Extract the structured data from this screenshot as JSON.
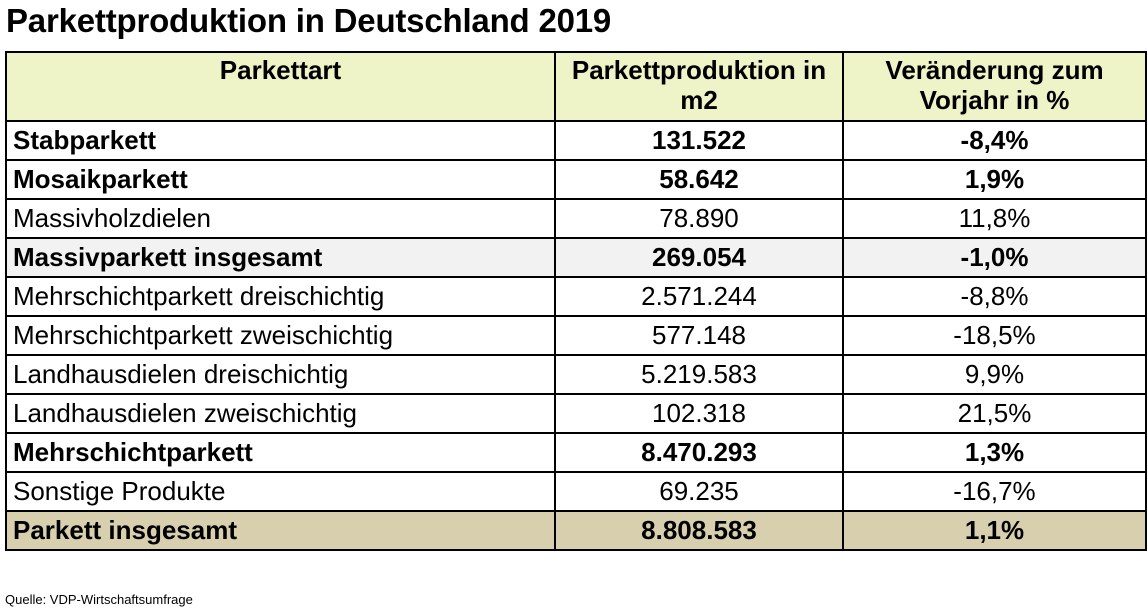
{
  "title": "Parkettproduktion in Deutschland 2019",
  "header": {
    "col1": "Parkettart",
    "col2_line1": "Parkettproduktion in",
    "col2_line2": "m2",
    "col3_line1": "Veränderung zum",
    "col3_line2": "Vorjahr in %"
  },
  "rows": [
    {
      "name": "Stabparkett",
      "value": "131.522",
      "change": "-8,4%"
    },
    {
      "name": "Mosaikparkett",
      "value": "58.642",
      "change": "1,9%"
    },
    {
      "name": "Massivholzdielen",
      "value": "78.890",
      "change": "11,8%"
    },
    {
      "name": "Massivparkett insgesamt",
      "value": "269.054",
      "change": "-1,0%"
    },
    {
      "name": "Mehrschichtparkett dreischichtig",
      "value": "2.571.244",
      "change": "-8,8%"
    },
    {
      "name": "Mehrschichtparkett zweischichtig",
      "value": "577.148",
      "change": "-18,5%"
    },
    {
      "name": "Landhausdielen dreischichtig",
      "value": "5.219.583",
      "change": "9,9%"
    },
    {
      "name": "Landhausdielen zweischichtig",
      "value": "102.318",
      "change": "21,5%"
    },
    {
      "name": "Mehrschichtparkett",
      "value": "8.470.293",
      "change": "1,3%"
    },
    {
      "name": "Sonstige Produkte",
      "value": "69.235",
      "change": "-16,7%"
    },
    {
      "name": "Parkett insgesamt",
      "value": "8.808.583",
      "change": "1,1%"
    }
  ],
  "source": "Quelle: VDP-Wirtschaftsumfrage",
  "colors": {
    "header_bg": "#eef4c8",
    "subtotal_bg": "#f2f2f2",
    "total_bg": "#d7cfae"
  },
  "chart_data": {
    "type": "table",
    "title": "Parkettproduktion in Deutschland 2019",
    "columns": [
      "Parkettart",
      "Parkettproduktion in m2",
      "Veränderung zum Vorjahr in %"
    ],
    "rows": [
      [
        "Stabparkett",
        131522,
        -8.4
      ],
      [
        "Mosaikparkett",
        58642,
        1.9
      ],
      [
        "Massivholzdielen",
        78890,
        11.8
      ],
      [
        "Massivparkett insgesamt",
        269054,
        -1.0
      ],
      [
        "Mehrschichtparkett dreischichtig",
        2571244,
        -8.8
      ],
      [
        "Mehrschichtparkett zweischichtig",
        577148,
        -18.5
      ],
      [
        "Landhausdielen dreischichtig",
        5219583,
        9.9
      ],
      [
        "Landhausdielen zweischichtig",
        102318,
        21.5
      ],
      [
        "Mehrschichtparkett",
        8470293,
        1.3
      ],
      [
        "Sonstige Produkte",
        69235,
        -16.7
      ],
      [
        "Parkett insgesamt",
        8808583,
        1.1
      ]
    ]
  }
}
